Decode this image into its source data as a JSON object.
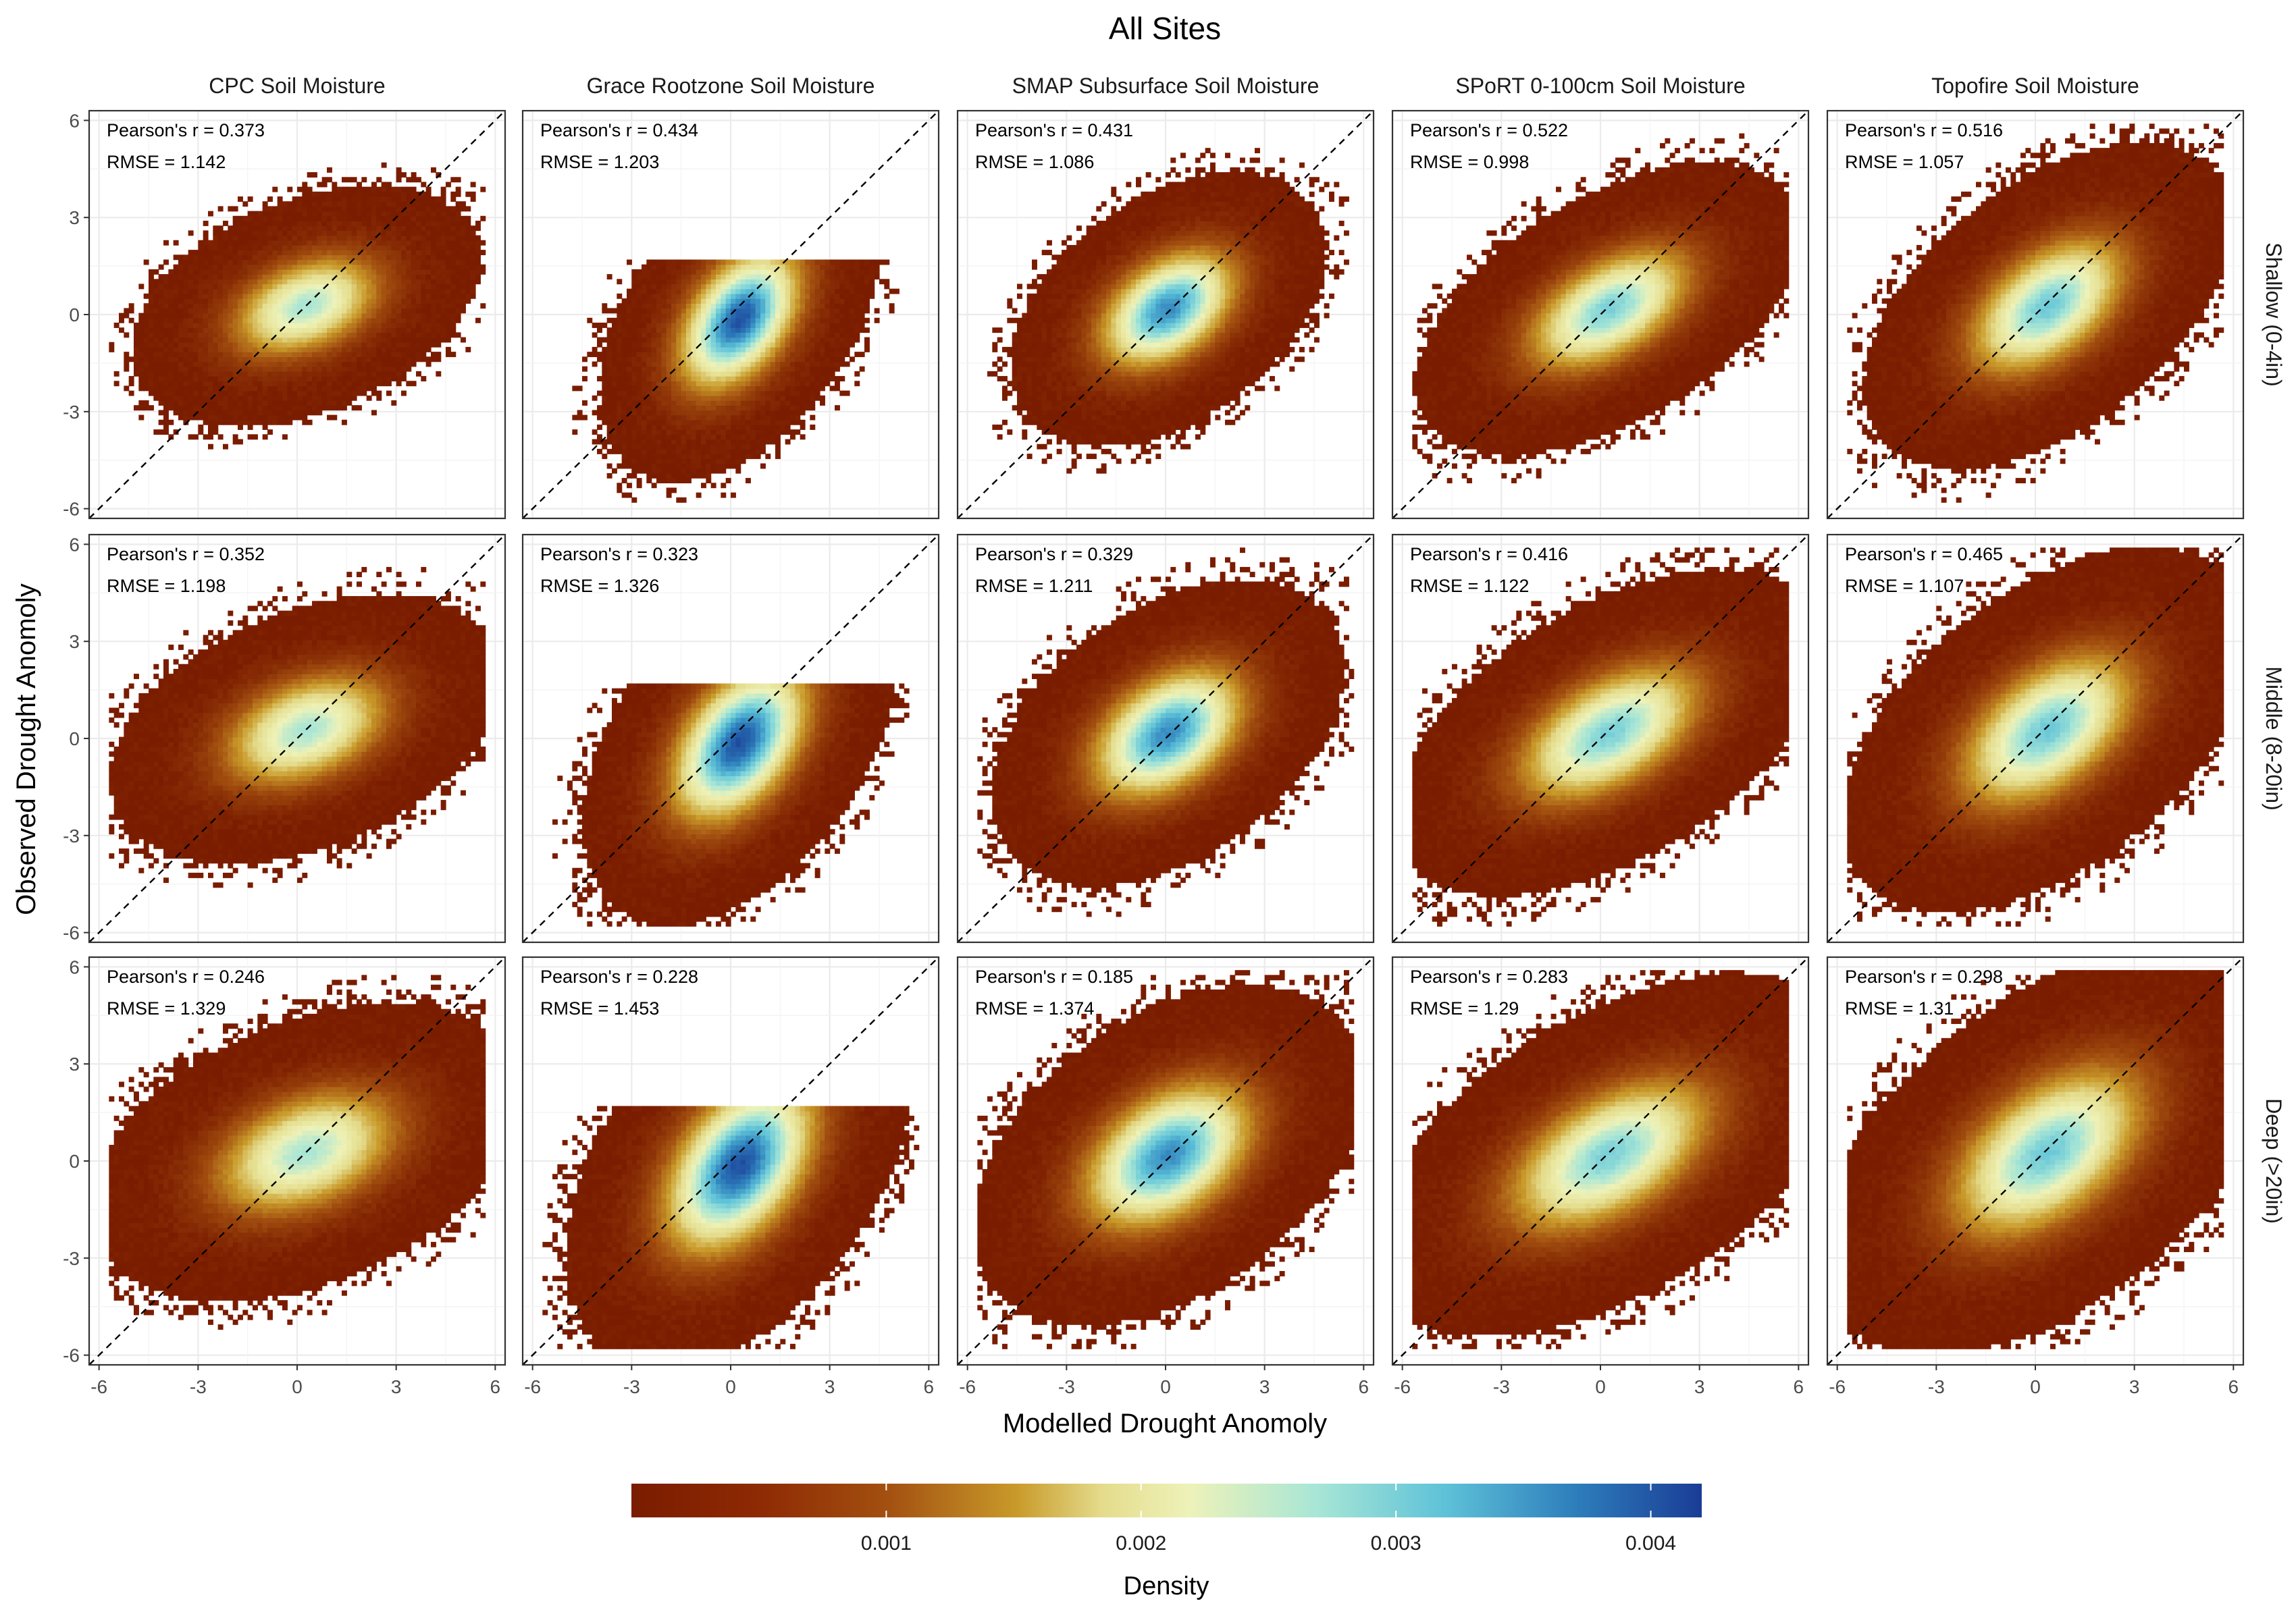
{
  "chart_data": {
    "type": "heatmap",
    "title": "All Sites",
    "xlabel": "Modelled Drought Anomoly",
    "ylabel": "Observed Drought Anomoly",
    "xlim": [
      -6.3,
      6.3
    ],
    "ylim": [
      -6.3,
      6.3
    ],
    "x_ticks": [
      -6,
      -3,
      0,
      3,
      6
    ],
    "y_ticks": [
      -6,
      -3,
      0,
      3,
      6
    ],
    "x_tick_labels": [
      "-6",
      "-3",
      "0",
      "3",
      "6"
    ],
    "y_tick_labels": [
      "-6",
      "-3",
      "0",
      "3",
      "6"
    ],
    "grid": true,
    "reference_line": "1:1 dashed",
    "columns": [
      "CPC Soil Moisture",
      "Grace Rootzone Soil Moisture",
      "SMAP Subsurface Soil Moisture",
      "SPoRT 0-100cm Soil Moisture",
      "Topofire Soil Moisture"
    ],
    "rows": [
      "Shallow (0-4in)",
      "Middle (8-20in)",
      "Deep (>20in)"
    ],
    "stat_labels": {
      "r_prefix": "Pearson's r = ",
      "rmse_prefix": "RMSE = "
    },
    "panels": [
      {
        "row": 0,
        "col": 0,
        "pearson_r": "0.373",
        "rmse": "1.142"
      },
      {
        "row": 0,
        "col": 1,
        "pearson_r": "0.434",
        "rmse": "1.203"
      },
      {
        "row": 0,
        "col": 2,
        "pearson_r": "0.431",
        "rmse": "1.086"
      },
      {
        "row": 0,
        "col": 3,
        "pearson_r": "0.522",
        "rmse": "0.998"
      },
      {
        "row": 0,
        "col": 4,
        "pearson_r": "0.516",
        "rmse": "1.057"
      },
      {
        "row": 1,
        "col": 0,
        "pearson_r": "0.352",
        "rmse": "1.198"
      },
      {
        "row": 1,
        "col": 1,
        "pearson_r": "0.323",
        "rmse": "1.326"
      },
      {
        "row": 1,
        "col": 2,
        "pearson_r": "0.329",
        "rmse": "1.211"
      },
      {
        "row": 1,
        "col": 3,
        "pearson_r": "0.416",
        "rmse": "1.122"
      },
      {
        "row": 1,
        "col": 4,
        "pearson_r": "0.465",
        "rmse": "1.107"
      },
      {
        "row": 2,
        "col": 0,
        "pearson_r": "0.246",
        "rmse": "1.329"
      },
      {
        "row": 2,
        "col": 1,
        "pearson_r": "0.228",
        "rmse": "1.453"
      },
      {
        "row": 2,
        "col": 2,
        "pearson_r": "0.185",
        "rmse": "1.374"
      },
      {
        "row": 2,
        "col": 3,
        "pearson_r": "0.283",
        "rmse": "1.29"
      },
      {
        "row": 2,
        "col": 4,
        "pearson_r": "0.298",
        "rmse": "1.31"
      }
    ],
    "legend": {
      "title": "Density",
      "position": "bottom",
      "range": [
        0,
        0.0042
      ],
      "ticks": [
        0.001,
        0.002,
        0.003,
        0.004
      ],
      "tick_labels": [
        "0.001",
        "0.002",
        "0.003",
        "0.004"
      ],
      "colors": [
        "#7a1c00",
        "#a35010",
        "#c99a2a",
        "#e4dc8c",
        "#eef2b8",
        "#a8e6d6",
        "#5ec2d8",
        "#2e7fbc",
        "#1a3c96"
      ]
    }
  }
}
